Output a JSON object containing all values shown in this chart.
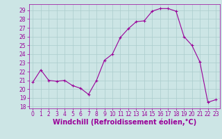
{
  "x": [
    0,
    1,
    2,
    3,
    4,
    5,
    6,
    7,
    8,
    9,
    10,
    11,
    12,
    13,
    14,
    15,
    16,
    17,
    18,
    19,
    20,
    21,
    22,
    23
  ],
  "y": [
    20.8,
    22.2,
    21.0,
    20.9,
    21.0,
    20.4,
    20.1,
    19.4,
    21.0,
    23.3,
    24.0,
    25.9,
    26.9,
    27.7,
    27.8,
    28.9,
    29.2,
    29.2,
    28.9,
    26.0,
    25.0,
    23.1,
    18.5,
    18.8
  ],
  "line_color": "#990099",
  "marker": "+",
  "marker_size": 3,
  "xlabel": "Windchill (Refroidissement éolien,°C)",
  "xlabel_fontsize": 7,
  "ylabel_ticks": [
    18,
    19,
    20,
    21,
    22,
    23,
    24,
    25,
    26,
    27,
    28,
    29
  ],
  "ylim": [
    17.8,
    29.7
  ],
  "xlim": [
    -0.5,
    23.5
  ],
  "bg_color": "#cce5e5",
  "grid_color": "#aacccc",
  "tick_color": "#990099",
  "tick_fontsize": 5.5,
  "title": ""
}
